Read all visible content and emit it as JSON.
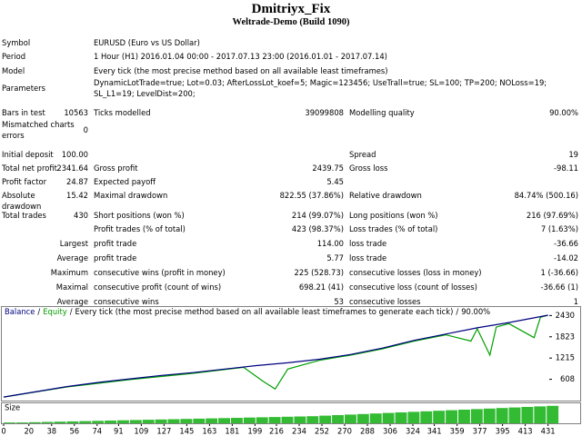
{
  "header": {
    "title": "Dmitriyx_Fix",
    "subtitle": "Weltrade-Demo (Build 1090)"
  },
  "info": [
    {
      "label": "Symbol",
      "value": "EURUSD (Euro vs US Dollar)"
    },
    {
      "label": "Period",
      "value": "1 Hour (H1) 2016.01.04 00:00 - 2017.07.13 23:00 (2016.01.01 - 2017.07.14)"
    },
    {
      "label": "Model",
      "value": "Every tick (the most precise method based on all available least timeframes)"
    },
    {
      "label": "Parameters",
      "value": "DynamicLotTrade=true; Lot=0.03; AfterLossLot_koef=5; Magic=123456; UseTrall=true; SL=100; TP=200; NOLoss=19; SL_L1=19; LevelDist=200;"
    }
  ],
  "stats": [
    {
      "label": "Bars in test",
      "value": "10563",
      "label2": "Ticks modelled",
      "value2": "39099808",
      "label3": "Modelling quality",
      "value3": "90.00%"
    },
    {
      "label": "Mismatched charts errors",
      "value": "0"
    },
    {
      "label": "Initial deposit",
      "value": "100.00",
      "label3": "Spread",
      "value3": "19"
    },
    {
      "label": "Total net profit",
      "value": "2341.64",
      "label2": "Gross profit",
      "value2": "2439.75",
      "label3": "Gross loss",
      "value3": "-98.11"
    },
    {
      "label": "Profit factor",
      "value": "24.87",
      "label2": "Expected payoff",
      "value2": "5.45"
    },
    {
      "label": "Absolute drawdown",
      "value": "15.42",
      "label2": "Maximal drawdown",
      "value2": "822.55 (37.86%)",
      "label3": "Relative drawdown",
      "value3": "84.74% (500.16)"
    },
    {
      "label": "Total trades",
      "value": "430",
      "label2": "Short positions (won %)",
      "value2": "214 (99.07%)",
      "label3": "Long positions (won %)",
      "value3": "216 (97.69%)"
    },
    {
      "label2": "Profit trades (% of total)",
      "value2": "423 (98.37%)",
      "label3": "Loss trades (% of total)",
      "value3": "7 (1.63%)"
    },
    {
      "value": "Largest",
      "label2": "profit trade",
      "value2": "114.00",
      "label3": "loss trade",
      "value3": "-36.66"
    },
    {
      "value": "Average",
      "label2": "profit trade",
      "value2": "5.77",
      "label3": "loss trade",
      "value3": "-14.02"
    },
    {
      "value": "Maximum",
      "label2": "consecutive wins (profit in money)",
      "value2": "225 (528.73)",
      "label3": "consecutive losses (loss in money)",
      "value3": "1 (-36.66)"
    },
    {
      "value": "Maximal",
      "label2": "consecutive profit (count of wins)",
      "value2": "698.21 (41)",
      "label3": "consecutive loss (count of losses)",
      "value3": "-36.66 (1)"
    },
    {
      "value": "Average",
      "label2": "consecutive wins",
      "value2": "53",
      "label3": "consecutive losses",
      "value3": "1"
    }
  ],
  "chart": {
    "type": "line",
    "separator": "/",
    "caption": "Every tick (the most precise method based on all available least timeframes to generate each tick)",
    "quality": "90.00%",
    "xlim": [
      0,
      432
    ],
    "ylim": [
      0,
      2700
    ],
    "yticks": [
      2430,
      1823,
      1215,
      608
    ],
    "xticks": [
      0,
      20,
      38,
      56,
      74,
      91,
      109,
      127,
      145,
      163,
      181,
      199,
      216,
      234,
      252,
      270,
      288,
      306,
      324,
      341,
      359,
      377,
      395,
      413,
      431
    ],
    "balance": {
      "name": "Balance",
      "color": "#000080",
      "x": [
        0,
        25,
        50,
        75,
        100,
        125,
        150,
        175,
        200,
        225,
        250,
        275,
        300,
        325,
        350,
        375,
        400,
        431
      ],
      "values": [
        100,
        250,
        400,
        520,
        620,
        720,
        800,
        900,
        1000,
        1080,
        1180,
        1320,
        1500,
        1720,
        1900,
        2080,
        2230,
        2441.64
      ]
    },
    "equity": {
      "name": "Equity",
      "color": "#00a000",
      "x": [
        0,
        50,
        100,
        150,
        190,
        205,
        215,
        225,
        250,
        275,
        300,
        325,
        350,
        370,
        375,
        385,
        390,
        400,
        420,
        425,
        431
      ],
      "values": [
        100,
        390,
        600,
        780,
        950,
        560,
        330,
        900,
        1150,
        1300,
        1480,
        1700,
        1880,
        1700,
        2050,
        1300,
        2100,
        2200,
        1800,
        2380,
        2441.64
      ]
    },
    "size": {
      "name": "Size",
      "color": "#33bb33",
      "ylim": [
        0,
        0.7
      ],
      "x": [
        0,
        10,
        20,
        30,
        40,
        50,
        60,
        70,
        80,
        90,
        100,
        110,
        120,
        130,
        140,
        150,
        160,
        170,
        180,
        190,
        200,
        210,
        220,
        230,
        240,
        250,
        260,
        270,
        280,
        290,
        300,
        310,
        320,
        330,
        340,
        350,
        360,
        370,
        380,
        390,
        400,
        410,
        420,
        430
      ],
      "values": [
        0.03,
        0.03,
        0.04,
        0.05,
        0.06,
        0.07,
        0.08,
        0.09,
        0.1,
        0.11,
        0.12,
        0.13,
        0.14,
        0.15,
        0.16,
        0.17,
        0.18,
        0.19,
        0.2,
        0.21,
        0.22,
        0.23,
        0.24,
        0.25,
        0.26,
        0.28,
        0.3,
        0.32,
        0.34,
        0.36,
        0.38,
        0.4,
        0.42,
        0.44,
        0.46,
        0.48,
        0.5,
        0.52,
        0.54,
        0.56,
        0.58,
        0.6,
        0.62,
        0.64
      ]
    }
  }
}
